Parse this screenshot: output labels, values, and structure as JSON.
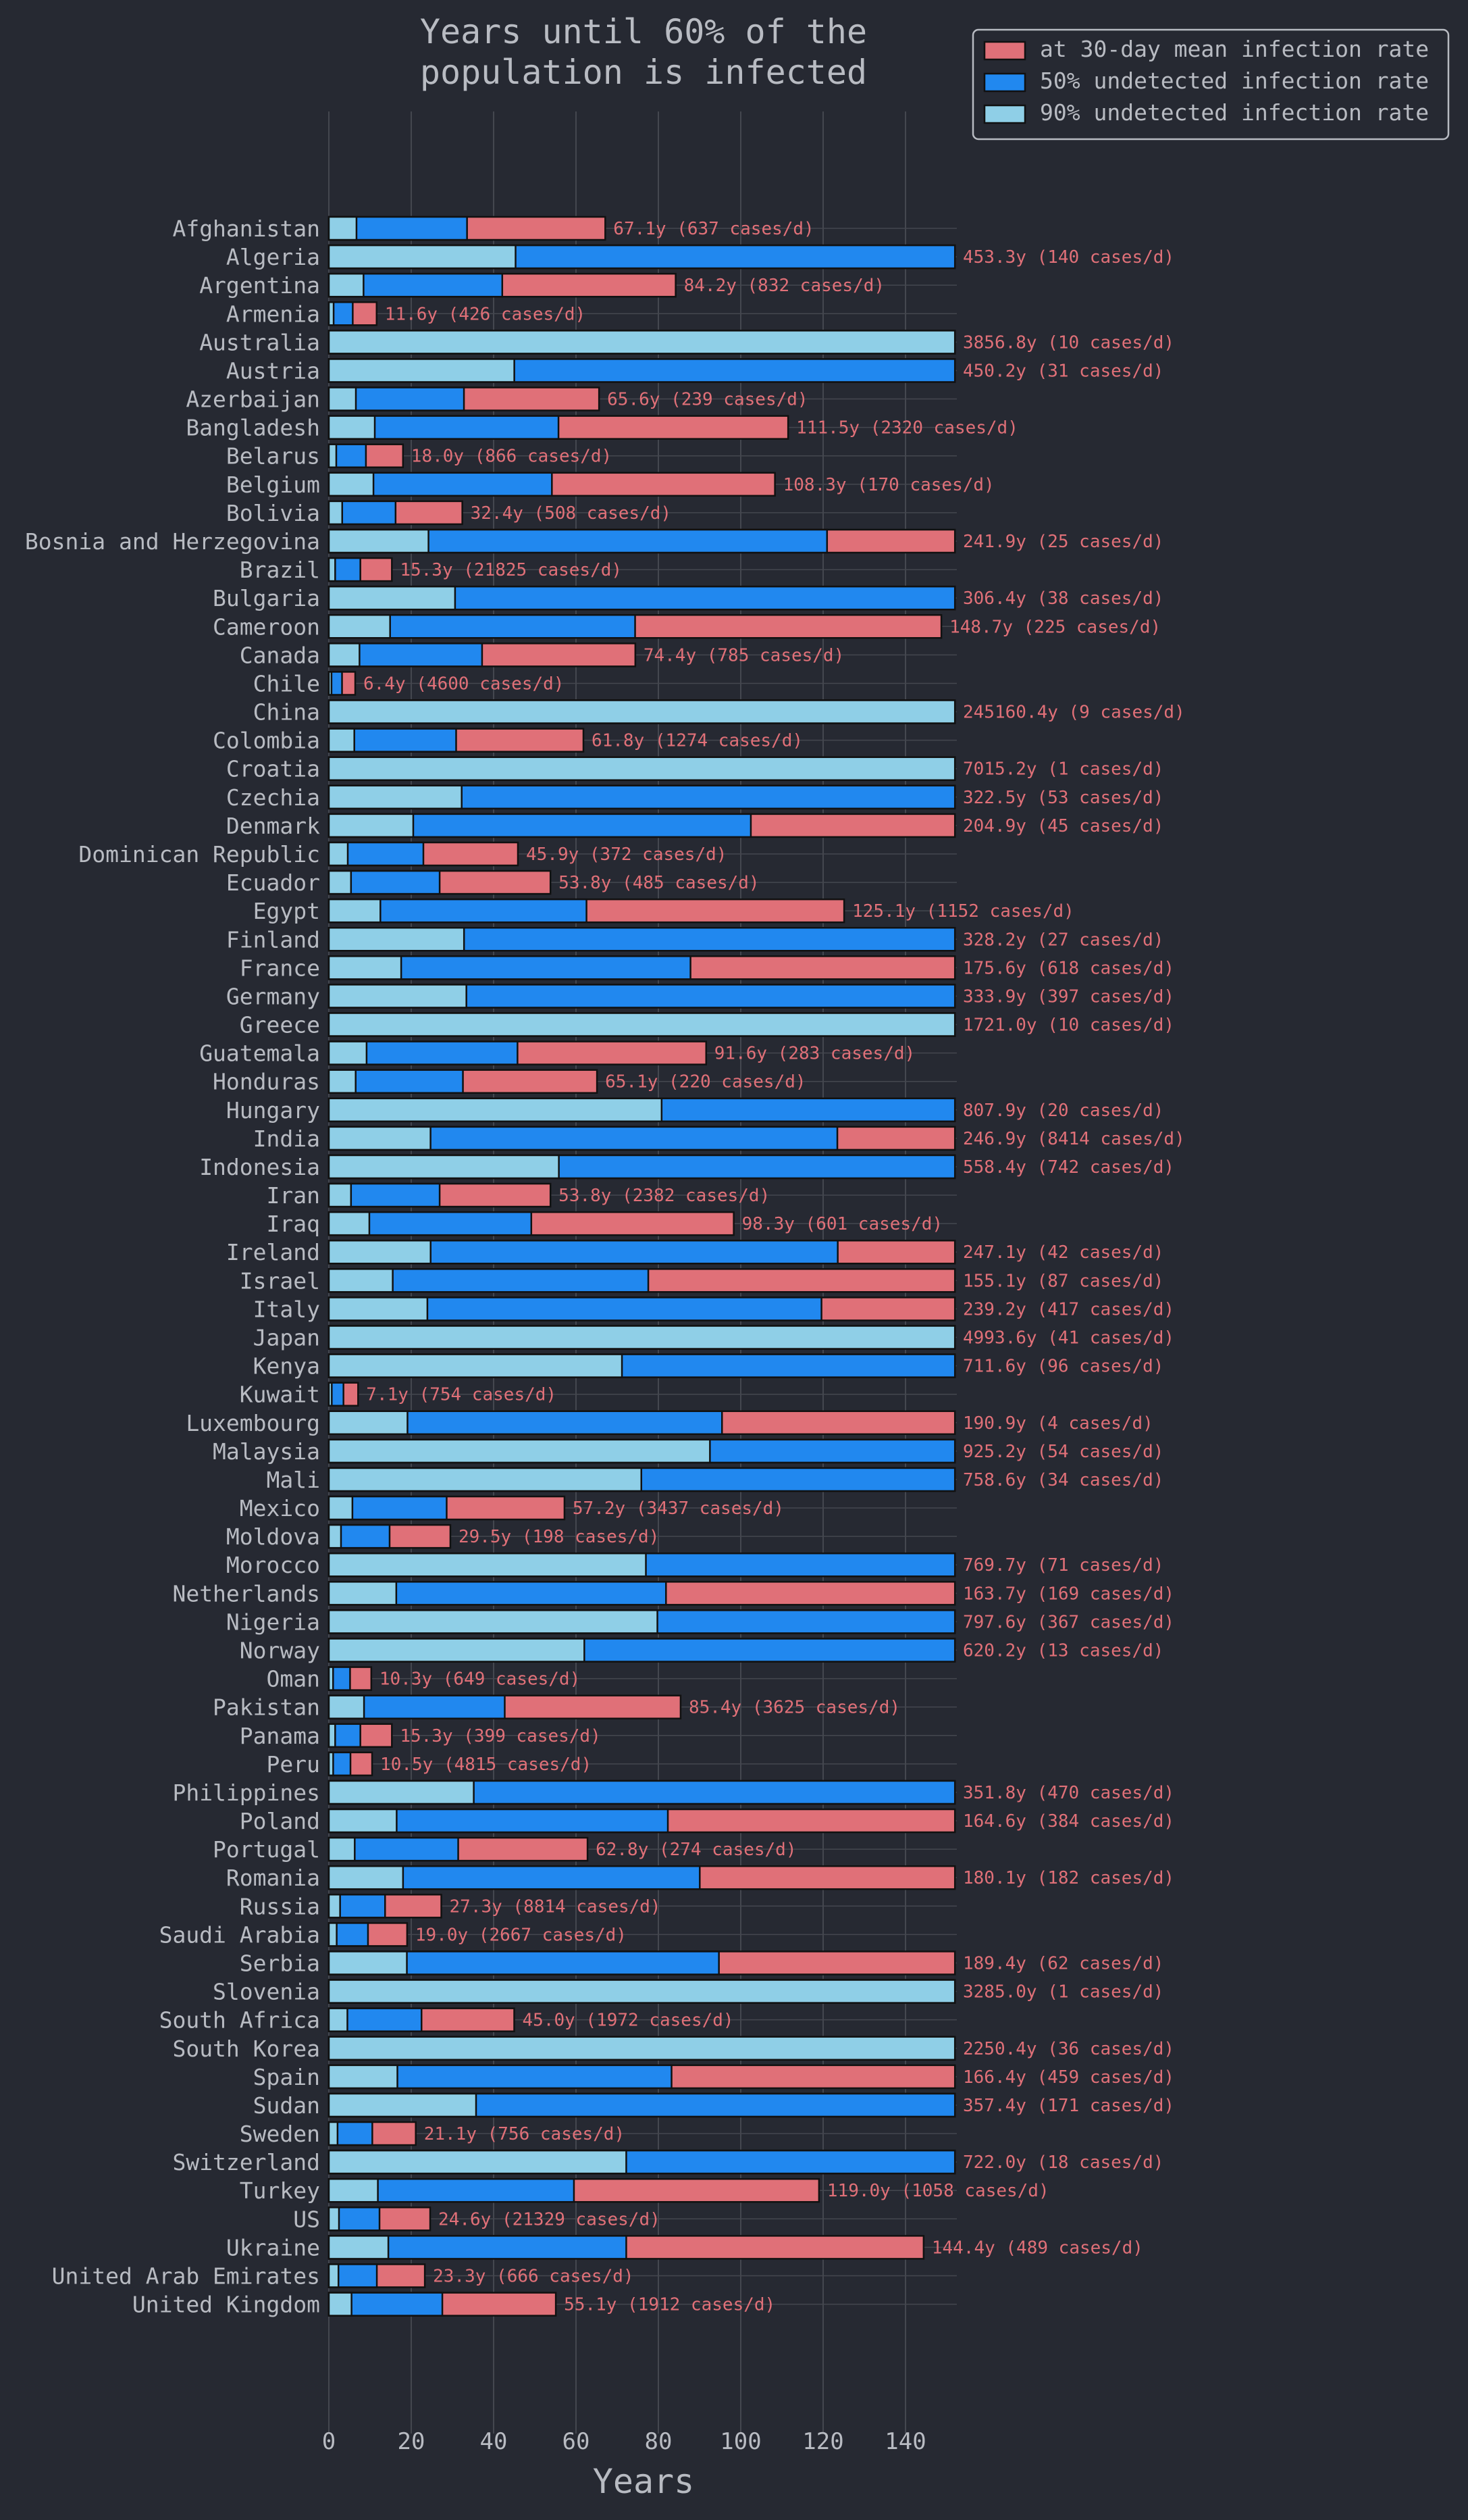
{
  "colors": {
    "background": "#262932",
    "red": "#e07078",
    "blue": "#2188ef",
    "light_blue": "#8fcfe7",
    "grid": "#44474f",
    "text": "#b8bbc2",
    "annotation": "#e07078",
    "bar_edge": "#111111"
  },
  "chart_data": {
    "type": "bar",
    "orientation": "horizontal",
    "title": "Years until 60% of the\npopulation is infected",
    "xlabel": "Years",
    "ylabel": "",
    "xlim": [
      0,
      152
    ],
    "xticks": [
      0,
      20,
      40,
      60,
      80,
      100,
      120,
      140
    ],
    "grid": true,
    "legend_position": "top-right",
    "series": [
      {
        "name": "at 30-day mean infection rate",
        "color": "red"
      },
      {
        "name": "50% undetected infection rate",
        "color": "blue"
      },
      {
        "name": "90% undetected infection rate",
        "color": "light_blue"
      }
    ],
    "rows": [
      {
        "country": "Afghanistan",
        "years": 67.1,
        "label": "67.1y  (637 cases/d)"
      },
      {
        "country": "Algeria",
        "years": 453.3,
        "label": "453.3y  (140 cases/d)"
      },
      {
        "country": "Argentina",
        "years": 84.2,
        "label": "84.2y  (832 cases/d)"
      },
      {
        "country": "Armenia",
        "years": 11.6,
        "label": "11.6y  (426 cases/d)"
      },
      {
        "country": "Australia",
        "years": 3856.8,
        "label": "3856.8y  (10 cases/d)"
      },
      {
        "country": "Austria",
        "years": 450.2,
        "label": "450.2y  (31 cases/d)"
      },
      {
        "country": "Azerbaijan",
        "years": 65.6,
        "label": "65.6y  (239 cases/d)"
      },
      {
        "country": "Bangladesh",
        "years": 111.5,
        "label": "111.5y  (2320 cases/d)"
      },
      {
        "country": "Belarus",
        "years": 18.0,
        "label": "18.0y  (866 cases/d)"
      },
      {
        "country": "Belgium",
        "years": 108.3,
        "label": "108.3y  (170 cases/d)"
      },
      {
        "country": "Bolivia",
        "years": 32.4,
        "label": "32.4y  (508 cases/d)"
      },
      {
        "country": "Bosnia and Herzegovina",
        "years": 241.9,
        "label": "241.9y  (25 cases/d)"
      },
      {
        "country": "Brazil",
        "years": 15.3,
        "label": "15.3y  (21825 cases/d)"
      },
      {
        "country": "Bulgaria",
        "years": 306.4,
        "label": "306.4y  (38 cases/d)"
      },
      {
        "country": "Cameroon",
        "years": 148.7,
        "label": "148.7y  (225 cases/d)"
      },
      {
        "country": "Canada",
        "years": 74.4,
        "label": "74.4y  (785 cases/d)"
      },
      {
        "country": "Chile",
        "years": 6.4,
        "label": "6.4y  (4600 cases/d)"
      },
      {
        "country": "China",
        "years": 245160.4,
        "label": "245160.4y  (9 cases/d)"
      },
      {
        "country": "Colombia",
        "years": 61.8,
        "label": "61.8y  (1274 cases/d)"
      },
      {
        "country": "Croatia",
        "years": 7015.2,
        "label": "7015.2y  (1 cases/d)"
      },
      {
        "country": "Czechia",
        "years": 322.5,
        "label": "322.5y  (53 cases/d)"
      },
      {
        "country": "Denmark",
        "years": 204.9,
        "label": "204.9y  (45 cases/d)"
      },
      {
        "country": "Dominican Republic",
        "years": 45.9,
        "label": "45.9y  (372 cases/d)"
      },
      {
        "country": "Ecuador",
        "years": 53.8,
        "label": "53.8y  (485 cases/d)"
      },
      {
        "country": "Egypt",
        "years": 125.1,
        "label": "125.1y  (1152 cases/d)"
      },
      {
        "country": "Finland",
        "years": 328.2,
        "label": "328.2y  (27 cases/d)"
      },
      {
        "country": "France",
        "years": 175.6,
        "label": "175.6y  (618 cases/d)"
      },
      {
        "country": "Germany",
        "years": 333.9,
        "label": "333.9y  (397 cases/d)"
      },
      {
        "country": "Greece",
        "years": 1721.0,
        "label": "1721.0y  (10 cases/d)"
      },
      {
        "country": "Guatemala",
        "years": 91.6,
        "label": "91.6y  (283 cases/d)"
      },
      {
        "country": "Honduras",
        "years": 65.1,
        "label": "65.1y  (220 cases/d)"
      },
      {
        "country": "Hungary",
        "years": 807.9,
        "label": "807.9y  (20 cases/d)"
      },
      {
        "country": "India",
        "years": 246.9,
        "label": "246.9y  (8414 cases/d)"
      },
      {
        "country": "Indonesia",
        "years": 558.4,
        "label": "558.4y  (742 cases/d)"
      },
      {
        "country": "Iran",
        "years": 53.8,
        "label": "53.8y  (2382 cases/d)"
      },
      {
        "country": "Iraq",
        "years": 98.3,
        "label": "98.3y  (601 cases/d)"
      },
      {
        "country": "Ireland",
        "years": 247.1,
        "label": "247.1y  (42 cases/d)"
      },
      {
        "country": "Israel",
        "years": 155.1,
        "label": "155.1y  (87 cases/d)"
      },
      {
        "country": "Italy",
        "years": 239.2,
        "label": "239.2y  (417 cases/d)"
      },
      {
        "country": "Japan",
        "years": 4993.6,
        "label": "4993.6y  (41 cases/d)"
      },
      {
        "country": "Kenya",
        "years": 711.6,
        "label": "711.6y  (96 cases/d)"
      },
      {
        "country": "Kuwait",
        "years": 7.1,
        "label": "7.1y  (754 cases/d)"
      },
      {
        "country": "Luxembourg",
        "years": 190.9,
        "label": "190.9y  (4 cases/d)"
      },
      {
        "country": "Malaysia",
        "years": 925.2,
        "label": "925.2y  (54 cases/d)"
      },
      {
        "country": "Mali",
        "years": 758.6,
        "label": "758.6y  (34 cases/d)"
      },
      {
        "country": "Mexico",
        "years": 57.2,
        "label": "57.2y  (3437 cases/d)"
      },
      {
        "country": "Moldova",
        "years": 29.5,
        "label": "29.5y  (198 cases/d)"
      },
      {
        "country": "Morocco",
        "years": 769.7,
        "label": "769.7y  (71 cases/d)"
      },
      {
        "country": "Netherlands",
        "years": 163.7,
        "label": "163.7y  (169 cases/d)"
      },
      {
        "country": "Nigeria",
        "years": 797.6,
        "label": "797.6y  (367 cases/d)"
      },
      {
        "country": "Norway",
        "years": 620.2,
        "label": "620.2y  (13 cases/d)"
      },
      {
        "country": "Oman",
        "years": 10.3,
        "label": "10.3y  (649 cases/d)"
      },
      {
        "country": "Pakistan",
        "years": 85.4,
        "label": "85.4y  (3625 cases/d)"
      },
      {
        "country": "Panama",
        "years": 15.3,
        "label": "15.3y  (399 cases/d)"
      },
      {
        "country": "Peru",
        "years": 10.5,
        "label": "10.5y  (4815 cases/d)"
      },
      {
        "country": "Philippines",
        "years": 351.8,
        "label": "351.8y  (470 cases/d)"
      },
      {
        "country": "Poland",
        "years": 164.6,
        "label": "164.6y  (384 cases/d)"
      },
      {
        "country": "Portugal",
        "years": 62.8,
        "label": "62.8y  (274 cases/d)"
      },
      {
        "country": "Romania",
        "years": 180.1,
        "label": "180.1y  (182 cases/d)"
      },
      {
        "country": "Russia",
        "years": 27.3,
        "label": "27.3y  (8814 cases/d)"
      },
      {
        "country": "Saudi Arabia",
        "years": 19.0,
        "label": "19.0y  (2667 cases/d)"
      },
      {
        "country": "Serbia",
        "years": 189.4,
        "label": "189.4y  (62 cases/d)"
      },
      {
        "country": "Slovenia",
        "years": 3285.0,
        "label": "3285.0y  (1 cases/d)"
      },
      {
        "country": "South Africa",
        "years": 45.0,
        "label": "45.0y  (1972 cases/d)"
      },
      {
        "country": "South Korea",
        "years": 2250.4,
        "label": "2250.4y  (36 cases/d)"
      },
      {
        "country": "Spain",
        "years": 166.4,
        "label": "166.4y  (459 cases/d)"
      },
      {
        "country": "Sudan",
        "years": 357.4,
        "label": "357.4y  (171 cases/d)"
      },
      {
        "country": "Sweden",
        "years": 21.1,
        "label": "21.1y  (756 cases/d)"
      },
      {
        "country": "Switzerland",
        "years": 722.0,
        "label": "722.0y  (18 cases/d)"
      },
      {
        "country": "Turkey",
        "years": 119.0,
        "label": "119.0y  (1058 cases/d)"
      },
      {
        "country": "US",
        "years": 24.6,
        "label": "24.6y  (21329 cases/d)"
      },
      {
        "country": "Ukraine",
        "years": 144.4,
        "label": "144.4y  (489 cases/d)"
      },
      {
        "country": "United Arab Emirates",
        "years": 23.3,
        "label": "23.3y  (666 cases/d)"
      },
      {
        "country": "United Kingdom",
        "years": 55.1,
        "label": "55.1y  (1912 cases/d)"
      }
    ]
  }
}
